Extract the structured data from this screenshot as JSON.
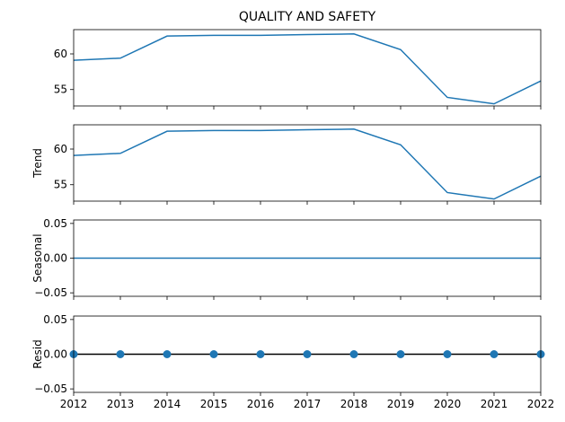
{
  "chart_data": [
    {
      "type": "line",
      "title": "QUALITY AND SAFETY",
      "xlabel": "",
      "ylabel": "",
      "x": [
        2012,
        2013,
        2014,
        2015,
        2016,
        2017,
        2018,
        2019,
        2020,
        2021,
        2022
      ],
      "series": [
        {
          "values": [
            59.1,
            59.4,
            62.5,
            62.6,
            62.6,
            62.7,
            62.8,
            60.6,
            53.9,
            53.0,
            56.2
          ]
        }
      ],
      "ylim": [
        52.7,
        63.4
      ],
      "yticks": [
        55,
        60
      ],
      "color": "#1f77b4"
    },
    {
      "type": "line",
      "title": "",
      "xlabel": "",
      "ylabel": "Trend",
      "x": [
        2012,
        2013,
        2014,
        2015,
        2016,
        2017,
        2018,
        2019,
        2020,
        2021,
        2022
      ],
      "series": [
        {
          "values": [
            59.1,
            59.4,
            62.5,
            62.6,
            62.6,
            62.7,
            62.8,
            60.6,
            53.9,
            53.0,
            56.2
          ]
        }
      ],
      "ylim": [
        52.7,
        63.4
      ],
      "yticks": [
        55,
        60
      ],
      "color": "#1f77b4"
    },
    {
      "type": "line",
      "title": "",
      "xlabel": "",
      "ylabel": "Seasonal",
      "x": [
        2012,
        2013,
        2014,
        2015,
        2016,
        2017,
        2018,
        2019,
        2020,
        2021,
        2022
      ],
      "series": [
        {
          "values": [
            0,
            0,
            0,
            0,
            0,
            0,
            0,
            0,
            0,
            0,
            0
          ]
        }
      ],
      "ylim": [
        -0.055,
        0.055
      ],
      "yticks": [
        -0.05,
        0.0,
        0.05
      ],
      "ytick_labels": [
        "−0.05",
        "0.00",
        "0.05"
      ],
      "color": "#1f77b4"
    },
    {
      "type": "scatter",
      "title": "",
      "xlabel": "",
      "ylabel": "Resid",
      "x": [
        2012,
        2013,
        2014,
        2015,
        2016,
        2017,
        2018,
        2019,
        2020,
        2021,
        2022
      ],
      "series": [
        {
          "values": [
            0,
            0,
            0,
            0,
            0,
            0,
            0,
            0,
            0,
            0,
            0
          ]
        }
      ],
      "ylim": [
        -0.055,
        0.055
      ],
      "yticks": [
        -0.05,
        0.0,
        0.05
      ],
      "ytick_labels": [
        "−0.05",
        "0.00",
        "0.05"
      ],
      "baseline": 0,
      "color": "#1f77b4",
      "baseline_color": "#000000"
    }
  ],
  "x_axis": {
    "range": [
      2012,
      2022
    ],
    "tick_labels": [
      "2012",
      "2013",
      "2014",
      "2015",
      "2016",
      "2017",
      "2018",
      "2019",
      "2020",
      "2021",
      "2022"
    ]
  }
}
